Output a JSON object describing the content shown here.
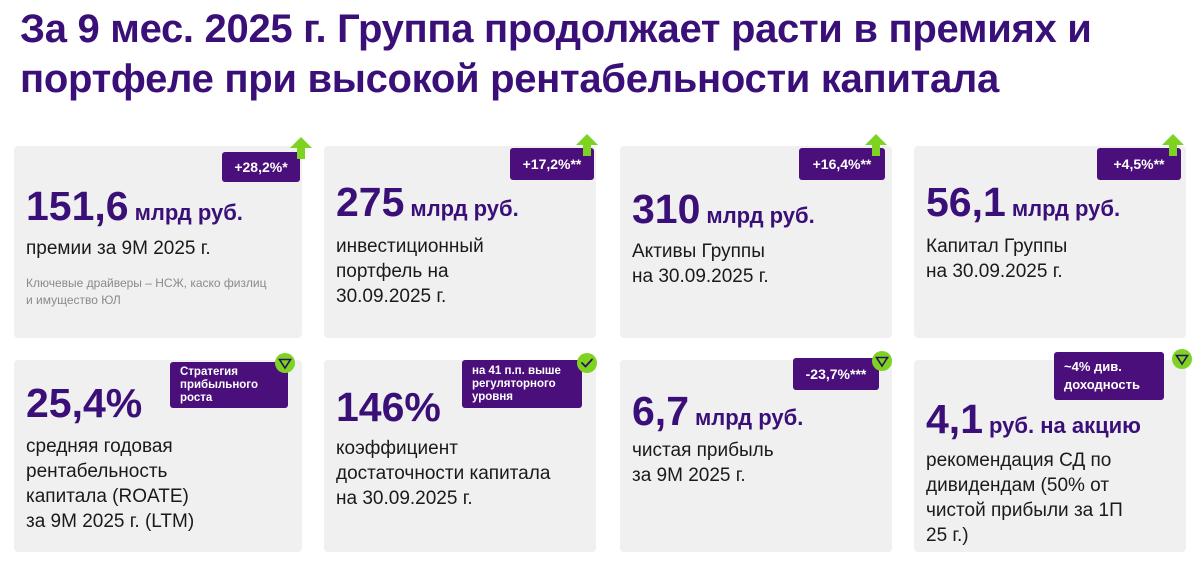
{
  "title": "За 9 мес. 2025 г. Группа продолжает расти в премиях и портфеле при высокой рентабельности капитала",
  "colors": {
    "brand": "#3a1078",
    "badge": "#4a0f7a",
    "accent_green": "#7ed321",
    "card": "#f0f0f0"
  },
  "cards": [
    {
      "badge": "+28,2%*",
      "icon": "arrow-up-icon",
      "value": "151,6",
      "unit": "млрд руб.",
      "description_lines": [
        "премии за 9М 2025 г."
      ],
      "note_lines": [
        "Ключевые драйверы – НСЖ, каско физлиц",
        "и имущество ЮЛ"
      ]
    },
    {
      "badge": "+17,2%**",
      "icon": "arrow-up-icon",
      "value": "275",
      "unit": "млрд руб.",
      "description_lines": [
        "инвестиционный",
        "портфель на",
        "30.09.2025 г."
      ]
    },
    {
      "badge": "+16,4%**",
      "icon": "arrow-up-icon",
      "value": "310",
      "unit": "млрд руб.",
      "description_lines": [
        "Активы Группы",
        "на 30.09.2025 г."
      ]
    },
    {
      "badge": "+4,5%**",
      "icon": "arrow-up-icon",
      "value": "56,1",
      "unit": "млрд руб.",
      "description_lines": [
        "Капитал Группы",
        "на 30.09.2025 г."
      ]
    },
    {
      "badge_lines": [
        "Стратегия",
        "прибыльного",
        "роста"
      ],
      "icon": "triangle-down-icon",
      "value": "25,4%",
      "unit": "",
      "description_lines": [
        "средняя годовая",
        "рентабельность",
        "капитала (ROATE)",
        "за 9М 2025 г. (LTM)"
      ]
    },
    {
      "badge_lines": [
        "на 41 п.п. выше",
        "регуляторного",
        "уровня"
      ],
      "icon": "check-icon",
      "value": "146%",
      "unit": "",
      "description_lines": [
        "коэффициент",
        "достаточности капитала",
        "на 30.09.2025 г."
      ]
    },
    {
      "badge": "-23,7%***",
      "icon": "triangle-down-icon",
      "value": "6,7",
      "unit": "млрд руб.",
      "description_lines": [
        "чистая прибыль",
        "за 9М 2025 г."
      ]
    },
    {
      "badge_lines": [
        "~4% див.",
        "доходность"
      ],
      "icon": "triangle-down-icon",
      "value": "4,1",
      "unit": "руб. на акцию",
      "description_lines": [
        "рекомендация СД по",
        "дивидендам (50% от",
        "чистой прибыли за 1П",
        "25 г.)"
      ]
    }
  ]
}
